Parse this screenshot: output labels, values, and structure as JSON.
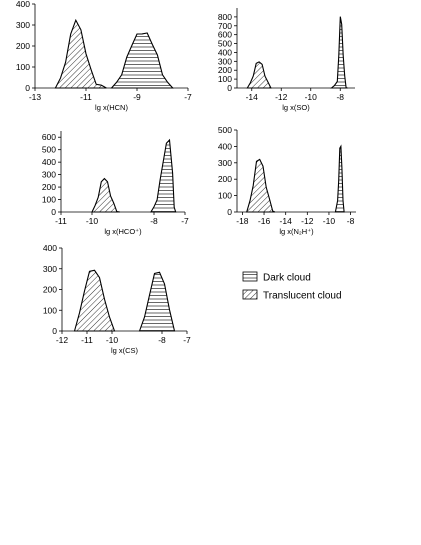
{
  "chart_data": [
    {
      "type": "area",
      "xlabel": "lg x(HCN)",
      "xlim": [
        -13,
        -7
      ],
      "ylim": [
        0,
        400
      ],
      "xticks": [
        "-13",
        "-11",
        "-9",
        "-7"
      ],
      "yticks": [
        "0",
        "100",
        "200",
        "300",
        "400"
      ],
      "series": [
        {
          "legend_ref": "dark",
          "x": [
            -10.0,
            -9.8,
            -9.6,
            -9.4,
            -9.2,
            -9.0,
            -8.8,
            -8.6,
            -8.4,
            -8.2,
            -8.0,
            -7.8,
            -7.6
          ],
          "values": [
            3,
            20,
            70,
            140,
            210,
            250,
            265,
            255,
            215,
            150,
            70,
            20,
            3
          ]
        },
        {
          "legend_ref": "translucent",
          "x": [
            -12.2,
            -12.0,
            -11.8,
            -11.6,
            -11.4,
            -11.2,
            -11.0,
            -10.8,
            -10.6,
            -10.4,
            -10.2
          ],
          "values": [
            3,
            40,
            130,
            250,
            330,
            270,
            170,
            80,
            25,
            6,
            0
          ]
        }
      ]
    },
    {
      "type": "area",
      "xlabel": "lg x(SO)",
      "xlim": [
        -15,
        -7
      ],
      "ylim": [
        0,
        900
      ],
      "xticks": [
        "-14",
        "-12",
        "-10",
        "-8"
      ],
      "yticks": [
        "0",
        "100",
        "200",
        "300",
        "400",
        "500",
        "600",
        "700",
        "800"
      ],
      "series": [
        {
          "legend_ref": "dark",
          "x": [
            -8.6,
            -8.4,
            -8.2,
            -8.1,
            -8.0,
            -7.9,
            -7.8,
            -7.7,
            -7.6,
            -7.5
          ],
          "values": [
            0,
            10,
            90,
            350,
            820,
            700,
            380,
            120,
            20,
            0
          ]
        },
        {
          "legend_ref": "translucent",
          "x": [
            -14.3,
            -14.1,
            -13.9,
            -13.7,
            -13.5,
            -13.3,
            -13.1,
            -12.9,
            -12.7
          ],
          "values": [
            0,
            40,
            150,
            260,
            310,
            250,
            150,
            50,
            0
          ]
        }
      ]
    },
    {
      "type": "area",
      "xlabel": "lg x(HCO⁺)",
      "xlim": [
        -11,
        -7
      ],
      "ylim": [
        0,
        650
      ],
      "xticks": [
        "-11",
        "-10",
        "-8",
        "-7"
      ],
      "yticks": [
        "0",
        "100",
        "200",
        "300",
        "400",
        "500",
        "600"
      ],
      "series": [
        {
          "legend_ref": "dark",
          "x": [
            -8.1,
            -8.0,
            -7.9,
            -7.8,
            -7.7,
            -7.6,
            -7.5,
            -7.4,
            -7.35,
            -7.3
          ],
          "values": [
            3,
            30,
            110,
            250,
            420,
            540,
            590,
            300,
            50,
            0
          ]
        },
        {
          "legend_ref": "translucent",
          "x": [
            -10.0,
            -9.9,
            -9.8,
            -9.7,
            -9.6,
            -9.5,
            -9.4,
            -9.3,
            -9.2,
            -9.1
          ],
          "values": [
            3,
            40,
            130,
            230,
            280,
            230,
            140,
            60,
            15,
            0
          ]
        }
      ]
    },
    {
      "type": "area",
      "xlabel": "lg x(N₂H⁺)",
      "xlim": [
        -18.5,
        -7.5
      ],
      "ylim": [
        0,
        500
      ],
      "xticks": [
        "-18",
        "-16",
        "-14",
        "-12",
        "-10",
        "-8"
      ],
      "yticks": [
        "0",
        "100",
        "200",
        "300",
        "400",
        "500"
      ],
      "series": [
        {
          "legend_ref": "dark",
          "x": [
            -9.4,
            -9.2,
            -9.1,
            -9.0,
            -8.9,
            -8.8,
            -8.7,
            -8.6
          ],
          "values": [
            0,
            60,
            200,
            380,
            410,
            260,
            80,
            0
          ]
        },
        {
          "legend_ref": "translucent",
          "x": [
            -17.6,
            -17.3,
            -17.0,
            -16.7,
            -16.4,
            -16.1,
            -15.8,
            -15.5,
            -15.2,
            -15.0
          ],
          "values": [
            0,
            60,
            170,
            300,
            330,
            270,
            160,
            70,
            15,
            0
          ]
        }
      ]
    },
    {
      "type": "area",
      "xlabel": "lg x(CS)",
      "xlim": [
        -12,
        -7
      ],
      "ylim": [
        0,
        400
      ],
      "xticks": [
        "-12",
        "-11",
        "-10",
        "-8",
        "-7"
      ],
      "yticks": [
        "0",
        "100",
        "200",
        "300",
        "400"
      ],
      "series": [
        {
          "legend_ref": "dark",
          "x": [
            -8.9,
            -8.7,
            -8.5,
            -8.3,
            -8.1,
            -7.9,
            -7.7,
            -7.5
          ],
          "values": [
            0,
            60,
            180,
            270,
            290,
            220,
            110,
            0
          ]
        },
        {
          "legend_ref": "translucent",
          "x": [
            -11.5,
            -11.3,
            -11.1,
            -10.9,
            -10.7,
            -10.5,
            -10.3,
            -10.1,
            -9.9
          ],
          "values": [
            0,
            80,
            200,
            280,
            300,
            250,
            160,
            60,
            0
          ]
        }
      ]
    }
  ],
  "legend": {
    "placement": "center-right",
    "items": [
      {
        "key": "dark",
        "label": "Dark cloud",
        "pattern": "horizontal-lines"
      },
      {
        "key": "translucent",
        "label": "Translucent cloud",
        "pattern": "diagonal-hatch"
      }
    ]
  }
}
